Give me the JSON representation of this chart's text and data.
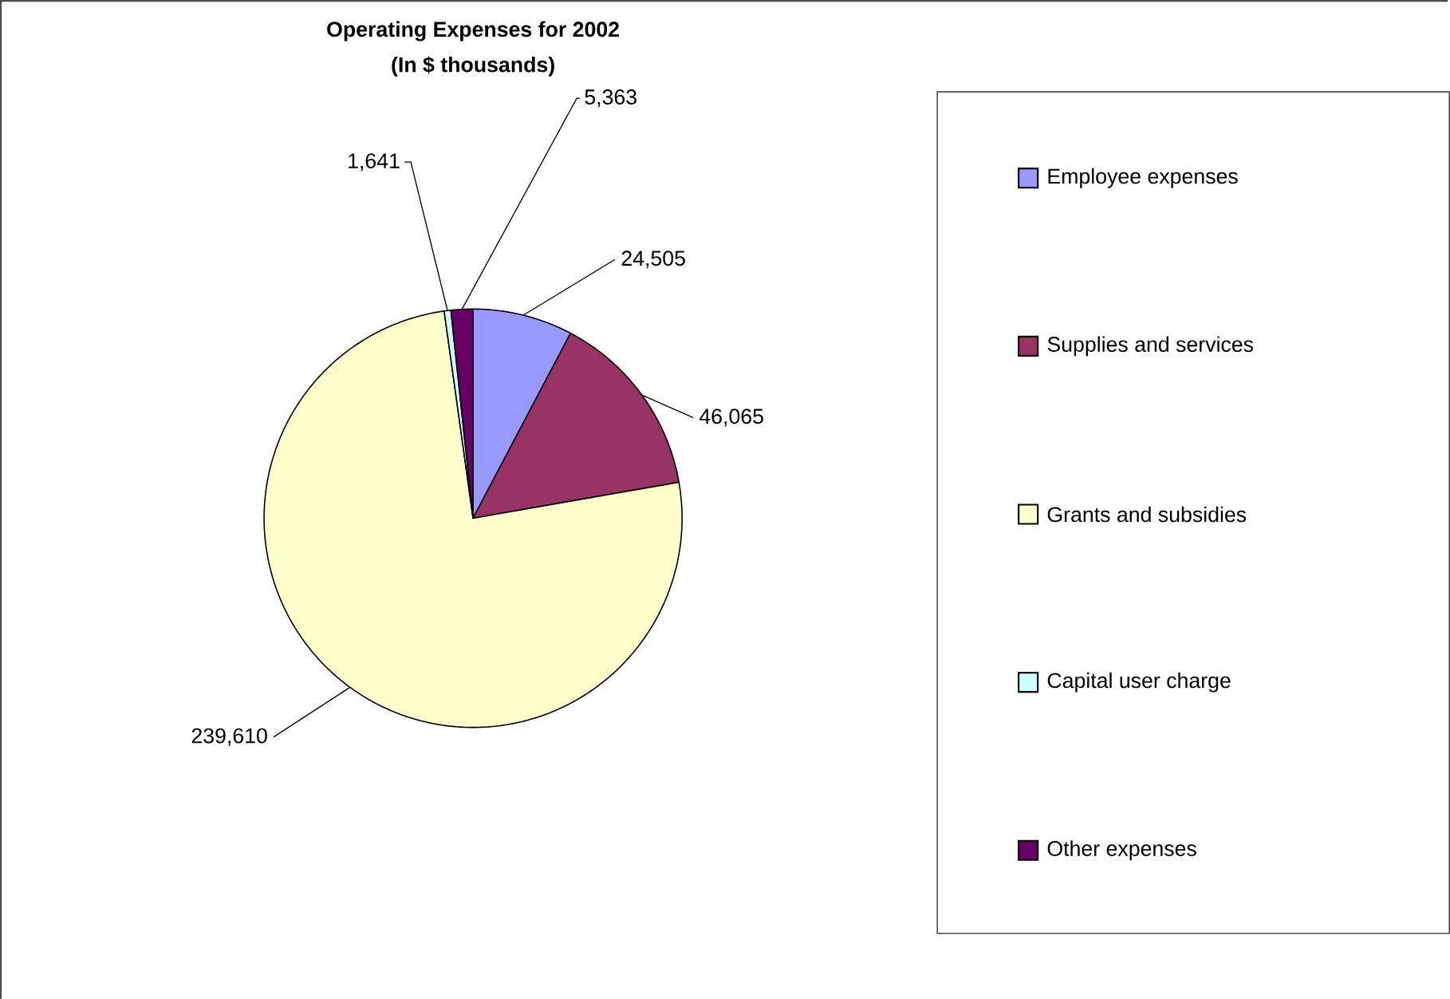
{
  "chart_data": {
    "type": "pie",
    "title": "Operating Expenses for 2002",
    "subtitle": "(In $ thousands)",
    "categories": [
      "Employee expenses",
      "Supplies and services",
      "Grants and subsidies",
      "Capital user charge",
      "Other  expenses"
    ],
    "values": [
      24505,
      46065,
      239610,
      1641,
      5363
    ],
    "value_labels": [
      "24,505",
      "46,065",
      "239,610",
      "1,641",
      "5,363"
    ],
    "colors": [
      "#9999ff",
      "#993366",
      "#ffffcc",
      "#ccffff",
      "#660066"
    ],
    "legend": "right"
  }
}
